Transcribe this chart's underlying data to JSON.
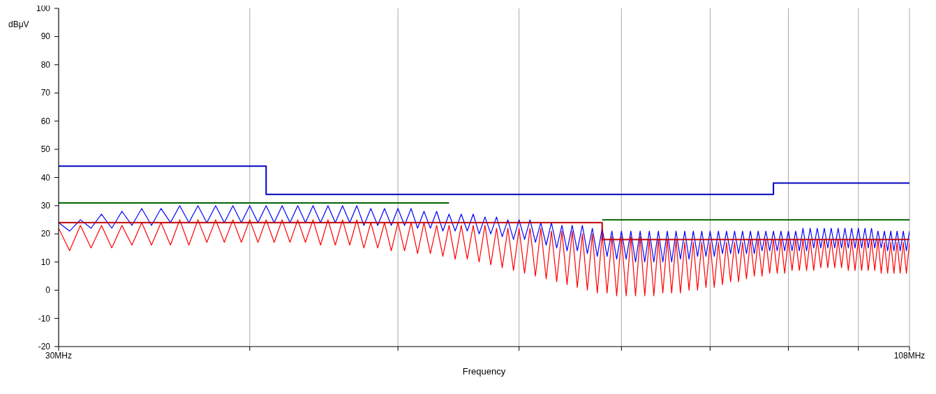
{
  "chart_data": {
    "type": "line",
    "xlabel": "Frequency",
    "ylabel": "dBμV",
    "log": "x",
    "grid": "x",
    "marker": "none",
    "xlim": [
      30,
      108
    ],
    "xticks": [
      {
        "value": 30,
        "label": "30MHz"
      },
      {
        "value": 40,
        "label": null
      },
      {
        "value": 50,
        "label": null
      },
      {
        "value": 60,
        "label": null
      },
      {
        "value": 70,
        "label": null
      },
      {
        "value": 80,
        "label": null
      },
      {
        "value": 90,
        "label": null
      },
      {
        "value": 100,
        "label": null
      },
      {
        "value": 108,
        "label": "108MHz"
      }
    ],
    "ylim": [
      -20,
      100
    ],
    "yticks": [
      -20,
      -10,
      0,
      10,
      20,
      30,
      40,
      50,
      60,
      70,
      80,
      90,
      100
    ],
    "x": [
      30,
      30.5,
      31,
      31.5,
      32,
      32.5,
      33,
      33.5,
      34,
      34.5,
      35,
      35.5,
      36,
      36.5,
      37,
      37.5,
      38,
      38.5,
      39,
      39.5,
      40,
      40.5,
      41,
      41.5,
      42,
      42.5,
      43,
      43.5,
      44,
      44.5,
      45,
      45.5,
      46,
      46.5,
      47,
      47.5,
      48,
      48.5,
      49,
      49.5,
      50,
      50.5,
      51,
      51.5,
      52,
      52.5,
      53,
      53.5,
      54,
      54.5,
      55,
      55.5,
      56,
      56.5,
      57,
      57.5,
      58,
      58.5,
      59,
      59.5,
      60,
      60.5,
      61,
      61.5,
      62,
      62.5,
      63,
      63.5,
      64,
      64.5,
      65,
      65.5,
      66,
      66.5,
      67,
      67.5,
      68,
      68.5,
      69,
      69.5,
      70,
      70.5,
      71,
      71.5,
      72,
      72.5,
      73,
      73.5,
      74,
      74.5,
      75,
      75.5,
      76,
      76.5,
      77,
      77.5,
      78,
      78.5,
      79,
      79.5,
      80,
      80.5,
      81,
      81.5,
      82,
      82.5,
      83,
      83.5,
      84,
      84.5,
      85,
      85.5,
      86,
      86.5,
      87,
      87.5,
      88,
      88.5,
      89,
      89.5,
      90,
      90.5,
      91,
      91.5,
      92,
      92.5,
      93,
      93.5,
      94,
      94.5,
      95,
      95.5,
      96,
      96.5,
      97,
      97.5,
      98,
      98.5,
      99,
      99.5,
      100,
      100.5,
      101,
      101.5,
      102,
      102.5,
      103,
      103.5,
      104,
      104.5,
      105,
      105.5,
      106,
      106.5,
      107,
      107.5,
      108
    ],
    "series": [
      {
        "color": "#0000ff",
        "values": [
          24,
          21,
          25,
          22,
          27,
          22,
          28,
          23,
          29,
          23,
          29,
          24,
          30,
          24,
          30,
          24,
          30,
          24,
          30,
          24,
          30,
          24,
          30,
          24,
          30,
          24,
          30,
          24,
          30,
          24,
          30,
          24,
          30,
          24,
          30,
          23,
          29,
          23,
          29,
          23,
          29,
          23,
          29,
          22,
          28,
          22,
          28,
          21,
          27,
          21,
          27,
          21,
          27,
          20,
          26,
          20,
          26,
          19,
          25,
          18,
          25,
          18,
          25,
          17,
          24,
          16,
          24,
          15,
          23,
          14,
          23,
          14,
          23,
          13,
          22,
          12,
          22,
          12,
          21,
          11,
          21,
          11,
          21,
          10,
          21,
          10,
          21,
          10,
          21,
          10,
          21,
          10,
          21,
          11,
          21,
          11,
          21,
          12,
          21,
          12,
          21,
          12,
          21,
          13,
          21,
          13,
          21,
          13,
          21,
          13,
          21,
          13,
          21,
          14,
          21,
          14,
          21,
          14,
          21,
          14,
          21,
          14,
          21,
          14,
          22,
          14,
          22,
          15,
          22,
          15,
          22,
          15,
          22,
          15,
          22,
          15,
          22,
          15,
          22,
          15,
          22,
          15,
          22,
          15,
          22,
          15,
          21,
          15,
          21,
          14,
          21,
          14,
          21,
          14,
          21,
          14,
          21
        ]
      },
      {
        "color": "#ff0000",
        "values": [
          22,
          14,
          23,
          15,
          23,
          15,
          23,
          16,
          24,
          16,
          24,
          16,
          25,
          16,
          25,
          17,
          25,
          17,
          25,
          17,
          25,
          17,
          25,
          17,
          25,
          17,
          25,
          17,
          25,
          16,
          25,
          16,
          25,
          16,
          25,
          15,
          24,
          15,
          24,
          14,
          24,
          14,
          24,
          13,
          24,
          13,
          23,
          12,
          23,
          11,
          23,
          11,
          23,
          10,
          23,
          9,
          22,
          8,
          22,
          7,
          22,
          6,
          22,
          5,
          22,
          4,
          21,
          3,
          21,
          2,
          21,
          1,
          20,
          0,
          20,
          -1,
          20,
          -1,
          19,
          -2,
          19,
          -2,
          19,
          -2,
          19,
          -2,
          18,
          -2,
          18,
          -1,
          18,
          -1,
          18,
          -1,
          17,
          0,
          17,
          0,
          17,
          1,
          17,
          1,
          17,
          2,
          17,
          3,
          17,
          3,
          17,
          4,
          18,
          5,
          18,
          5,
          18,
          6,
          18,
          6,
          18,
          6,
          18,
          7,
          18,
          7,
          18,
          7,
          18,
          7,
          18,
          8,
          18,
          8,
          18,
          8,
          18,
          8,
          18,
          7,
          18,
          7,
          18,
          7,
          18,
          7,
          18,
          7,
          18,
          6,
          17,
          6,
          17,
          6,
          17,
          6,
          17,
          6,
          17
        ]
      },
      {
        "color": "#0000c0",
        "x": [
          30,
          41,
          41,
          88,
          88,
          108
        ],
        "values": [
          44,
          44,
          34,
          34,
          38,
          38
        ]
      },
      {
        "color": "#006400",
        "x": [
          30,
          54,
          61,
          68,
          108
        ],
        "values": [
          31,
          31,
          null,
          25,
          25
        ]
      },
      {
        "color": "#c00000",
        "x": [
          30,
          68,
          68,
          108
        ],
        "values": [
          24,
          24,
          18,
          18
        ]
      }
    ]
  }
}
